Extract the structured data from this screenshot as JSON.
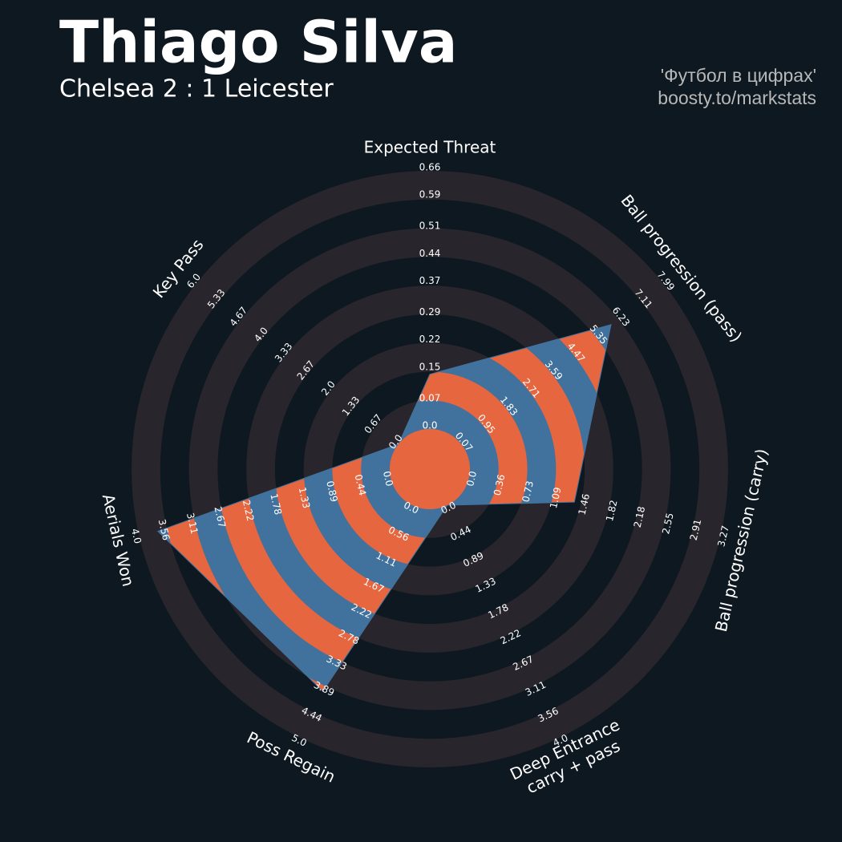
{
  "chart_data": {
    "type": "radar",
    "title": "Thiago Silva",
    "subtitle": "Chelsea 2 : 1 Leicester",
    "credits": [
      "'Футбол в цифрах'",
      "boosty.to/markstats"
    ],
    "categories": [
      "Expected Threat",
      "Ball progression (pass)",
      "Ball progression (carry)",
      [
        "Deep Entrance",
        "carry + pass"
      ],
      "Poss Regain",
      "Aerials Won",
      "Key Pass"
    ],
    "axes": [
      {
        "lim": [
          0,
          0.66
        ],
        "ticks": [
          {
            "value": 0,
            "label": "0.0"
          },
          0.07,
          0.15,
          0.22,
          0.29,
          0.37,
          0.44,
          0.51,
          0.59,
          0.66
        ]
      },
      {
        "lim": [
          0.07,
          7.99
        ],
        "ticks": [
          0.07,
          0.95,
          1.83,
          2.71,
          3.59,
          4.47,
          5.35,
          6.23,
          7.11,
          7.99
        ]
      },
      {
        "lim": [
          0,
          3.27
        ],
        "ticks": [
          {
            "value": 0,
            "label": "0.0"
          },
          0.36,
          0.73,
          1.09,
          1.46,
          1.82,
          2.18,
          2.55,
          2.91,
          3.27
        ]
      },
      {
        "lim": [
          0,
          4
        ],
        "ticks": [
          {
            "value": 0,
            "label": "0.0"
          },
          0.44,
          0.89,
          1.33,
          1.78,
          2.22,
          2.67,
          3.11,
          3.56,
          {
            "value": 4,
            "label": "4.0"
          }
        ]
      },
      {
        "lim": [
          0,
          5
        ],
        "ticks": [
          {
            "value": 0,
            "label": "0.0"
          },
          0.56,
          1.11,
          1.67,
          2.22,
          2.78,
          3.33,
          3.89,
          4.44,
          {
            "value": 5,
            "label": "5.0"
          }
        ]
      },
      {
        "lim": [
          0,
          4
        ],
        "ticks": [
          {
            "value": 0,
            "label": "0.0"
          },
          0.44,
          0.89,
          1.33,
          1.78,
          2.22,
          2.67,
          3.11,
          3.56,
          {
            "value": 4,
            "label": "4.0"
          }
        ]
      },
      {
        "lim": [
          0,
          6
        ],
        "ticks": [
          {
            "value": 0,
            "label": "0.0"
          },
          0.67,
          1.33,
          {
            "value": 2,
            "label": "2.0"
          },
          2.67,
          3.33,
          {
            "value": 4,
            "label": "4.0"
          },
          4.67,
          5.33,
          {
            "value": 6,
            "label": "6.0"
          }
        ]
      }
    ],
    "values": [
      0.14,
      5.95,
      1.37,
      0,
      4,
      3.7,
      0
    ],
    "color": "#41729d",
    "alt_color": "#e66640",
    "ring_color": "#28252c"
  }
}
